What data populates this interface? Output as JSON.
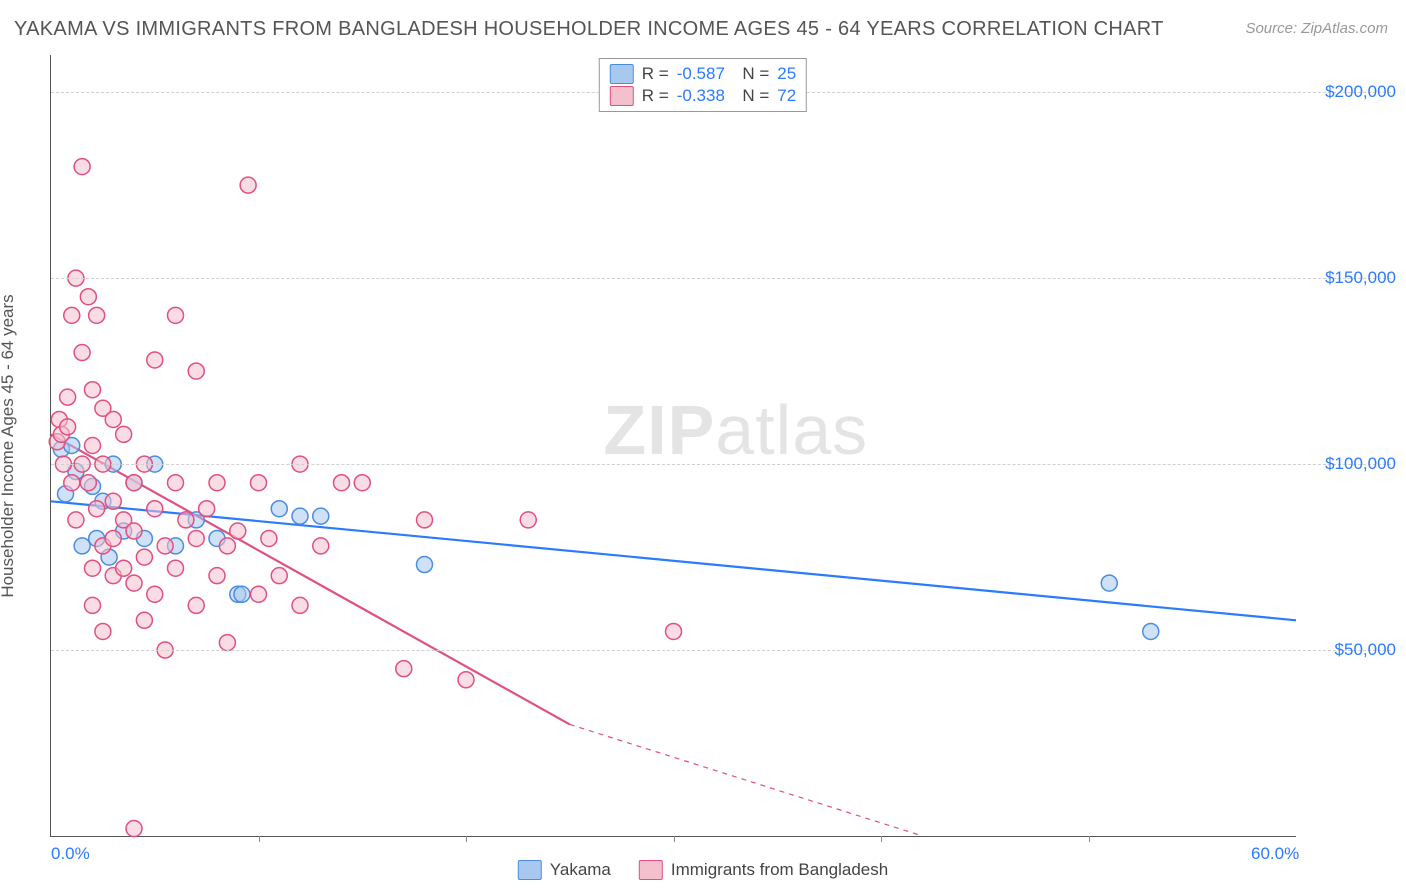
{
  "title": "YAKAMA VS IMMIGRANTS FROM BANGLADESH HOUSEHOLDER INCOME AGES 45 - 64 YEARS CORRELATION CHART",
  "source": "Source: ZipAtlas.com",
  "ylabel": "Householder Income Ages 45 - 64 years",
  "watermark_a": "ZIP",
  "watermark_b": "atlas",
  "chart": {
    "type": "scatter",
    "xlim": [
      0,
      60
    ],
    "ylim": [
      0,
      210000
    ],
    "xtick_labels": [
      {
        "x": 0,
        "label": "0.0%"
      },
      {
        "x": 60,
        "label": "60.0%"
      }
    ],
    "xtick_minor": [
      10,
      20,
      30,
      40,
      50
    ],
    "ytick_labels": [
      {
        "y": 50000,
        "label": "$50,000"
      },
      {
        "y": 100000,
        "label": "$100,000"
      },
      {
        "y": 150000,
        "label": "$150,000"
      },
      {
        "y": 200000,
        "label": "$200,000"
      }
    ],
    "grid_color": "#d0d0d0",
    "background_color": "#ffffff",
    "marker_radius": 8,
    "marker_stroke_width": 1.5,
    "line_width": 2.2,
    "series": [
      {
        "key": "yakama",
        "label": "Yakama",
        "color_fill": "#a8c8f0",
        "color_stroke": "#4b8de0",
        "line_color": "#2b7bff",
        "R": "-0.587",
        "N": "25",
        "regression": {
          "x1": 0,
          "y1": 90000,
          "x2": 60,
          "y2": 58000
        },
        "points": [
          [
            0.5,
            104000
          ],
          [
            0.7,
            92000
          ],
          [
            1.0,
            105000
          ],
          [
            1.2,
            98000
          ],
          [
            1.5,
            78000
          ],
          [
            2.0,
            94000
          ],
          [
            2.2,
            80000
          ],
          [
            2.5,
            90000
          ],
          [
            2.8,
            75000
          ],
          [
            3.0,
            100000
          ],
          [
            3.5,
            82000
          ],
          [
            4.0,
            95000
          ],
          [
            4.5,
            80000
          ],
          [
            5.0,
            100000
          ],
          [
            6.0,
            78000
          ],
          [
            7.0,
            85000
          ],
          [
            8.0,
            80000
          ],
          [
            9.0,
            65000
          ],
          [
            9.2,
            65000
          ],
          [
            11.0,
            88000
          ],
          [
            12.0,
            86000
          ],
          [
            13.0,
            86000
          ],
          [
            18.0,
            73000
          ],
          [
            51.0,
            68000
          ],
          [
            53.0,
            55000
          ]
        ]
      },
      {
        "key": "bangladesh",
        "label": "Immigrants from Bangladesh",
        "color_fill": "#f5c0cd",
        "color_stroke": "#e05080",
        "line_color": "#e05080",
        "R": "-0.338",
        "N": "72",
        "regression": {
          "x1": 0,
          "y1": 108000,
          "x2": 25,
          "y2": 30000
        },
        "regression_dash": {
          "x1": 25,
          "y1": 30000,
          "x2": 42,
          "y2": 0
        },
        "points": [
          [
            0.3,
            106000
          ],
          [
            0.4,
            112000
          ],
          [
            0.5,
            108000
          ],
          [
            0.6,
            100000
          ],
          [
            0.8,
            118000
          ],
          [
            0.8,
            110000
          ],
          [
            1.0,
            140000
          ],
          [
            1.0,
            95000
          ],
          [
            1.2,
            150000
          ],
          [
            1.2,
            85000
          ],
          [
            1.5,
            180000
          ],
          [
            1.5,
            130000
          ],
          [
            1.5,
            100000
          ],
          [
            1.8,
            145000
          ],
          [
            1.8,
            95000
          ],
          [
            2.0,
            120000
          ],
          [
            2.0,
            105000
          ],
          [
            2.0,
            72000
          ],
          [
            2.0,
            62000
          ],
          [
            2.2,
            140000
          ],
          [
            2.2,
            88000
          ],
          [
            2.5,
            115000
          ],
          [
            2.5,
            100000
          ],
          [
            2.5,
            78000
          ],
          [
            2.5,
            55000
          ],
          [
            3.0,
            112000
          ],
          [
            3.0,
            90000
          ],
          [
            3.0,
            80000
          ],
          [
            3.0,
            70000
          ],
          [
            3.5,
            108000
          ],
          [
            3.5,
            85000
          ],
          [
            3.5,
            72000
          ],
          [
            4.0,
            95000
          ],
          [
            4.0,
            82000
          ],
          [
            4.0,
            68000
          ],
          [
            4.0,
            2000
          ],
          [
            4.5,
            100000
          ],
          [
            4.5,
            75000
          ],
          [
            4.5,
            58000
          ],
          [
            5.0,
            128000
          ],
          [
            5.0,
            88000
          ],
          [
            5.0,
            65000
          ],
          [
            5.5,
            78000
          ],
          [
            5.5,
            50000
          ],
          [
            6.0,
            140000
          ],
          [
            6.0,
            95000
          ],
          [
            6.0,
            72000
          ],
          [
            6.5,
            85000
          ],
          [
            7.0,
            125000
          ],
          [
            7.0,
            80000
          ],
          [
            7.0,
            62000
          ],
          [
            7.5,
            88000
          ],
          [
            8.0,
            95000
          ],
          [
            8.0,
            70000
          ],
          [
            8.5,
            78000
          ],
          [
            8.5,
            52000
          ],
          [
            9.0,
            82000
          ],
          [
            9.5,
            175000
          ],
          [
            10.0,
            95000
          ],
          [
            10.0,
            65000
          ],
          [
            10.5,
            80000
          ],
          [
            11.0,
            70000
          ],
          [
            12.0,
            100000
          ],
          [
            12.0,
            62000
          ],
          [
            13.0,
            78000
          ],
          [
            14.0,
            95000
          ],
          [
            15.0,
            95000
          ],
          [
            17.0,
            45000
          ],
          [
            18.0,
            85000
          ],
          [
            20.0,
            42000
          ],
          [
            23.0,
            85000
          ],
          [
            30.0,
            55000
          ]
        ]
      }
    ]
  },
  "colors": {
    "text_heading": "#555555",
    "text_source": "#999999",
    "axis_value": "#2b7bff"
  }
}
